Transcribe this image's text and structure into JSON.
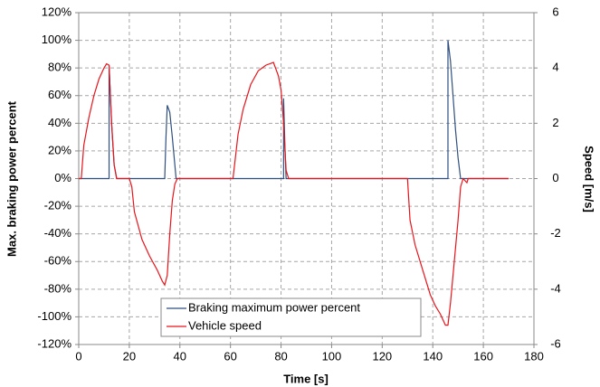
{
  "chart_data": {
    "type": "line",
    "xlabel": "Time [s]",
    "ylabel": "Max. braking power percent",
    "y2label": "Speed [m/s]",
    "xlim": [
      0,
      180
    ],
    "xticks": [
      0,
      20,
      40,
      60,
      80,
      100,
      120,
      140,
      160,
      180
    ],
    "ylim": [
      -120,
      120
    ],
    "yticks": [
      {
        "value": -120,
        "label": "-120%"
      },
      {
        "value": -100,
        "label": "-100%"
      },
      {
        "value": -80,
        "label": "-80%"
      },
      {
        "value": -60,
        "label": "-60%"
      },
      {
        "value": -40,
        "label": "-40%"
      },
      {
        "value": -20,
        "label": "-20%"
      },
      {
        "value": 0,
        "label": "0%"
      },
      {
        "value": 20,
        "label": "20%"
      },
      {
        "value": 40,
        "label": "40%"
      },
      {
        "value": 60,
        "label": "60%"
      },
      {
        "value": 80,
        "label": "80%"
      },
      {
        "value": 100,
        "label": "100%"
      },
      {
        "value": 120,
        "label": "120%"
      }
    ],
    "y2lim": [
      -6,
      6
    ],
    "y2ticks": [
      -6,
      -4,
      -2,
      0,
      2,
      4,
      6
    ],
    "grid": true,
    "legend": "bottom-left",
    "series": [
      {
        "name": "Braking maximum power percent",
        "color": "#2f4f7f",
        "axis": "y",
        "x": [
          0,
          12,
          12,
          13,
          14,
          15,
          34,
          34.5,
          35,
          36,
          37,
          38,
          38.5,
          81,
          81,
          81.5,
          82,
          146,
          146,
          147,
          148,
          149,
          150,
          151,
          170
        ],
        "values": [
          0,
          0,
          82,
          40,
          10,
          0,
          0,
          30,
          53,
          48,
          30,
          10,
          0,
          0,
          58,
          25,
          0,
          0,
          100,
          85,
          60,
          35,
          15,
          0,
          0
        ]
      },
      {
        "name": "Vehicle speed",
        "color": "#e8141b",
        "axis": "y2",
        "x": [
          0,
          1,
          2,
          4,
          6,
          8,
          10,
          11,
          12,
          13,
          14,
          15,
          20,
          21,
          22,
          25,
          28,
          31,
          33,
          34,
          35,
          36,
          37,
          38,
          39,
          61,
          62,
          63,
          65,
          68,
          71,
          74,
          77,
          79,
          80,
          81,
          82,
          83,
          130,
          131,
          133,
          136,
          139,
          141,
          143,
          145,
          146,
          147,
          148,
          149,
          150,
          151,
          152,
          153,
          153.5,
          154,
          170
        ],
        "values": [
          0,
          0,
          1.2,
          2.2,
          3.0,
          3.6,
          4.0,
          4.15,
          4.1,
          2.0,
          0.5,
          0,
          0,
          -0.3,
          -1.2,
          -2.2,
          -2.8,
          -3.3,
          -3.7,
          -3.85,
          -3.5,
          -2.0,
          -0.8,
          -0.2,
          0,
          0,
          0.8,
          1.6,
          2.5,
          3.4,
          3.9,
          4.1,
          4.2,
          3.7,
          3.2,
          2.0,
          0.3,
          0,
          0,
          -1.5,
          -2.4,
          -3.3,
          -4.2,
          -4.6,
          -4.9,
          -5.3,
          -5.3,
          -4.5,
          -3.5,
          -2.5,
          -1.5,
          -0.3,
          0,
          -0.1,
          -0.15,
          0,
          0
        ]
      }
    ]
  }
}
